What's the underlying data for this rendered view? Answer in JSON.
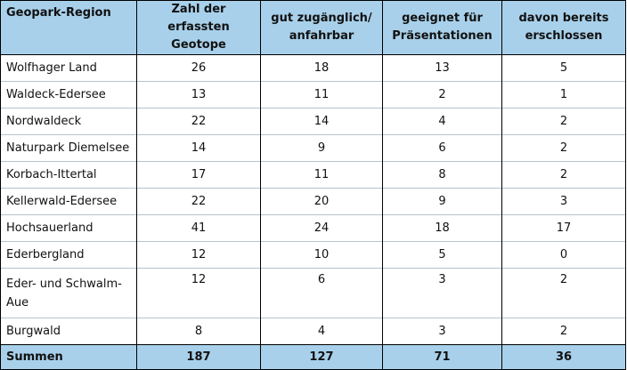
{
  "table": {
    "headers": [
      "Geopark-Region",
      "Zahl der erfassten Geotope",
      "gut zugänglich/ anfahrbar",
      "geeignet für Präsentationen",
      "davon bereits erschlossen"
    ],
    "rows": [
      [
        "Wolfhager Land",
        "26",
        "18",
        "13",
        "5"
      ],
      [
        "Waldeck-Edersee",
        "13",
        "11",
        "2",
        "1"
      ],
      [
        "Nordwaldeck",
        "22",
        "14",
        "4",
        "2"
      ],
      [
        "Naturpark Diemelsee",
        "14",
        "9",
        "6",
        "2"
      ],
      [
        "Korbach-Ittertal",
        "17",
        "11",
        "8",
        "2"
      ],
      [
        "Kellerwald-Edersee",
        "22",
        "20",
        "9",
        "3"
      ],
      [
        "Hochsauerland",
        "41",
        "24",
        "18",
        "17"
      ],
      [
        "Ederbergland",
        "12",
        "10",
        "5",
        "0"
      ],
      [
        "Eder- und Schwalm-Aue",
        "12",
        "6",
        "3",
        "2"
      ],
      [
        "Burgwald",
        "8",
        "4",
        "3",
        "2"
      ]
    ],
    "total": [
      "Summen",
      "187",
      "127",
      "71",
      "36"
    ]
  },
  "colors": {
    "header_background": "#a8d0ea",
    "row_divider": "#b8c3cc",
    "border": "#000000"
  }
}
